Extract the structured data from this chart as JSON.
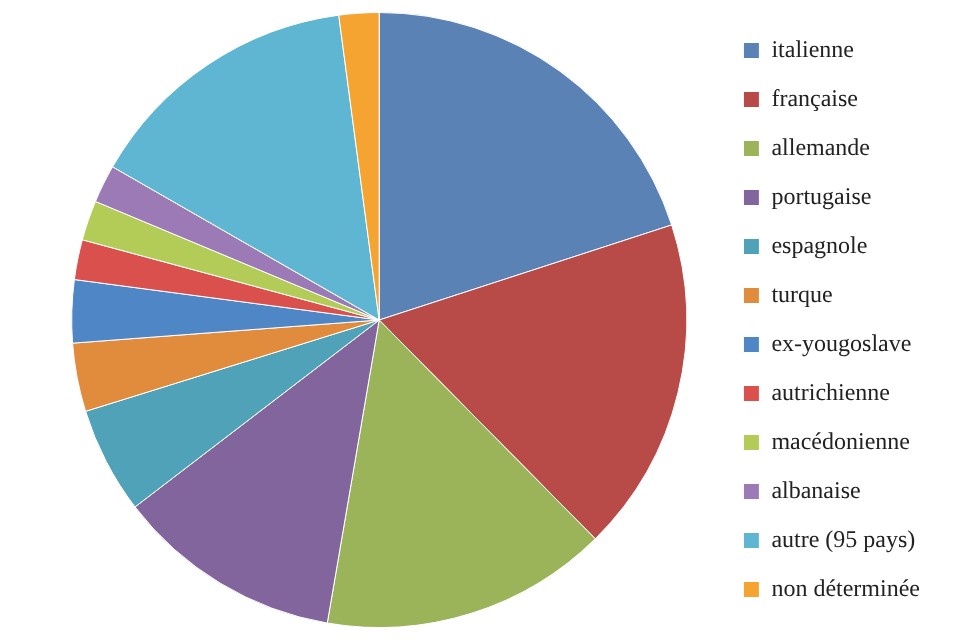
{
  "chart_data": {
    "type": "pie",
    "categories": [
      "italienne",
      "française",
      "allemande",
      "portugaise",
      "espagnole",
      "turque",
      "ex-yougoslave",
      "autrichienne",
      "macédonienne",
      "albanaise",
      "autre (95 pays)",
      "non déterminée"
    ],
    "values": [
      20,
      17.6,
      15.1,
      11.9,
      5.6,
      3.6,
      3.3,
      2.1,
      2.1,
      2,
      14.6,
      2.1
    ],
    "colors": [
      "#5b82b5",
      "#b84a47",
      "#9bb45a",
      "#83659e",
      "#4fa2b8",
      "#e08c3c",
      "#4f86c6",
      "#d9504d",
      "#b3cc57",
      "#9b7ab5",
      "#5fb6d3",
      "#f5a431"
    ],
    "legend": "right"
  }
}
